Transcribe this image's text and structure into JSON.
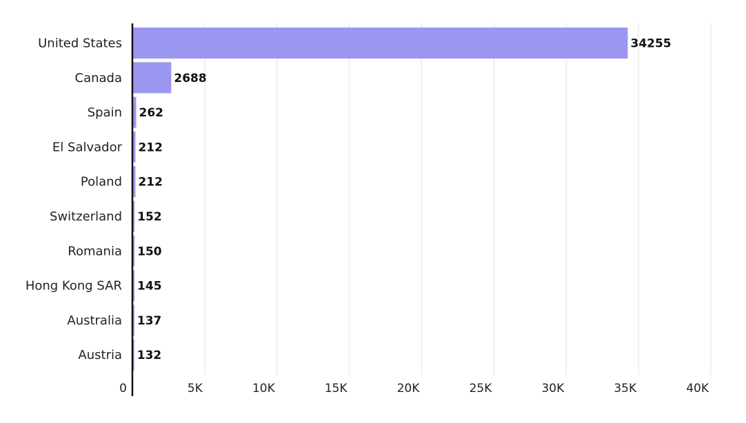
{
  "chart_data": {
    "type": "bar",
    "orientation": "horizontal",
    "categories": [
      "United States",
      "Canada",
      "Spain",
      "El Salvador",
      "Poland",
      "Switzerland",
      "Romania",
      "Hong Kong SAR",
      "Australia",
      "Austria"
    ],
    "values": [
      34255,
      2688,
      262,
      212,
      212,
      152,
      150,
      145,
      137,
      132
    ],
    "value_labels": [
      "34255",
      "2688",
      "262",
      "212",
      "212",
      "152",
      "150",
      "145",
      "137",
      "132"
    ],
    "x_ticks": [
      0,
      5000,
      10000,
      15000,
      20000,
      25000,
      30000,
      35000,
      40000
    ],
    "x_tick_labels": [
      "0",
      "5K",
      "10K",
      "15K",
      "20K",
      "25K",
      "30K",
      "35K",
      "40K"
    ],
    "xlim": [
      0,
      40000
    ],
    "grid": "vertical",
    "legend": "none",
    "bar_color": "#9b97f0",
    "title": "",
    "xlabel": "",
    "ylabel": ""
  }
}
